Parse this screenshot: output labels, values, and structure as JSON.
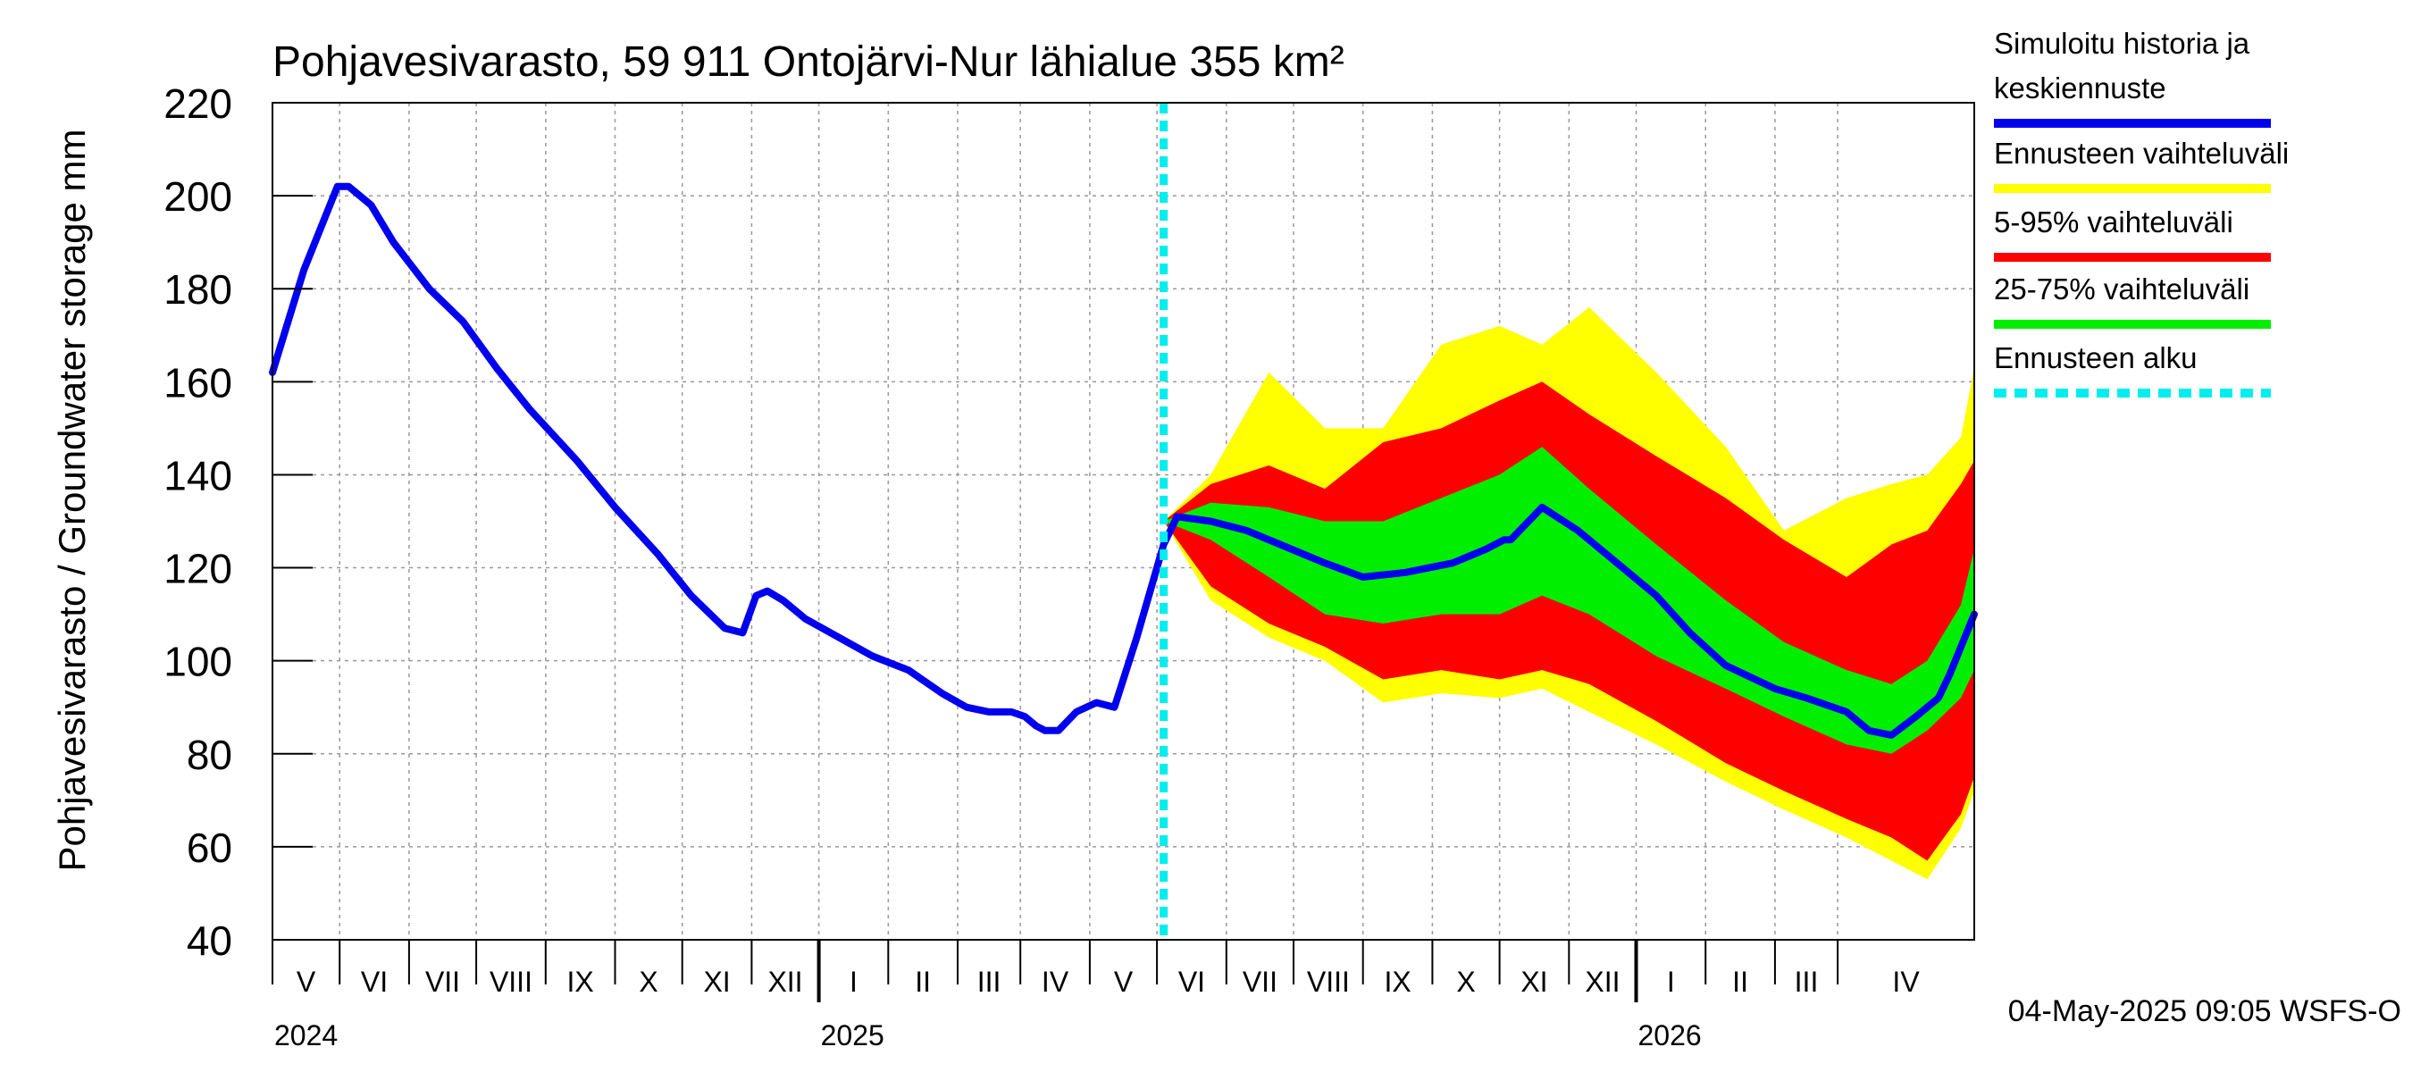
{
  "chart_data": {
    "type": "area",
    "title": "Pohjavesivarasto, 59 911 Ontojärvi-Nur lähialue 355 km²",
    "ylabel": "Pohjavesivarasto / Groundwater storage   mm",
    "ylim": [
      40,
      220
    ],
    "yticks": [
      "40",
      "60",
      "80",
      "100",
      "120",
      "140",
      "160",
      "180",
      "200",
      "220"
    ],
    "xlim": [
      "2024-04-01",
      "2026-05-01"
    ],
    "month_labels": [
      {
        "label": "V",
        "date": "2024-04-01"
      },
      {
        "label": "VI",
        "date": "2024-05-01"
      },
      {
        "label": "VII",
        "date": "2024-06-01"
      },
      {
        "label": "VIII",
        "date": "2024-07-01"
      },
      {
        "label": "IX",
        "date": "2024-08-01"
      },
      {
        "label": "X",
        "date": "2024-09-01"
      },
      {
        "label": "XI",
        "date": "2024-10-01"
      },
      {
        "label": "XII",
        "date": "2024-11-01"
      },
      {
        "label": "I",
        "date": "2024-12-01"
      },
      {
        "label": "II",
        "date": "2025-01-01"
      },
      {
        "label": "III",
        "date": "2025-02-01"
      },
      {
        "label": "IV",
        "date": "2025-03-01"
      },
      {
        "label": "V",
        "date": "2025-04-01"
      },
      {
        "label": "VI",
        "date": "2025-05-01"
      },
      {
        "label": "VII",
        "date": "2025-06-01"
      },
      {
        "label": "VIII",
        "date": "2025-07-01"
      },
      {
        "label": "IX",
        "date": "2025-08-01"
      },
      {
        "label": "X",
        "date": "2025-09-01"
      },
      {
        "label": "XI",
        "date": "2025-10-01"
      },
      {
        "label": "XII",
        "date": "2025-11-01"
      },
      {
        "label": "I",
        "date": "2025-12-01"
      },
      {
        "label": "II",
        "date": "2026-01-01"
      },
      {
        "label": "III",
        "date": "2026-02-01"
      },
      {
        "label": "IV",
        "date": "2026-03-01"
      }
    ],
    "year_labels": [
      {
        "label": "2024",
        "date": "2024-04-01"
      },
      {
        "label": "2025",
        "date": "2024-12-01"
      },
      {
        "label": "2026",
        "date": "2025-12-01"
      }
    ],
    "forecast_start": "2025-05-04",
    "colors": {
      "history": "#0000ee",
      "range_full": "#ffff00",
      "range_5_95": "#ff0000",
      "range_25_75": "#00ee00",
      "forecast_start": "#00eeee",
      "grid": "#999999"
    },
    "series": [
      {
        "name": "Simuloitu historia ja keskiennuste",
        "x": [
          "2024-04-01",
          "2024-04-15",
          "2024-04-30",
          "2024-05-05",
          "2024-05-15",
          "2024-05-25",
          "2024-06-10",
          "2024-06-25",
          "2024-07-10",
          "2024-07-25",
          "2024-08-15",
          "2024-09-01",
          "2024-09-20",
          "2024-10-05",
          "2024-10-20",
          "2024-10-28",
          "2024-11-03",
          "2024-11-08",
          "2024-11-15",
          "2024-11-25",
          "2024-12-10",
          "2024-12-25",
          "2025-01-10",
          "2025-01-25",
          "2025-02-05",
          "2025-02-15",
          "2025-02-25",
          "2025-03-03",
          "2025-03-08",
          "2025-03-12",
          "2025-03-18",
          "2025-03-26",
          "2025-04-04",
          "2025-04-12",
          "2025-04-22",
          "2025-05-04",
          "2025-05-10",
          "2025-05-25",
          "2025-06-10",
          "2025-06-25",
          "2025-07-15",
          "2025-08-01",
          "2025-08-20",
          "2025-09-10",
          "2025-09-25",
          "2025-10-03",
          "2025-10-06",
          "2025-10-20",
          "2025-11-05",
          "2025-11-20",
          "2025-12-10",
          "2025-12-25",
          "2026-01-10",
          "2026-02-01",
          "2026-02-15",
          "2026-03-05",
          "2026-03-15",
          "2026-03-25",
          "2026-04-05",
          "2026-04-15",
          "2026-04-20",
          "2026-05-01"
        ],
        "y": [
          162,
          184,
          202,
          202,
          198,
          190,
          180,
          173,
          163,
          154,
          143,
          133,
          123,
          114,
          107,
          106,
          114,
          115,
          113,
          109,
          105,
          101,
          98,
          93,
          90,
          89,
          89,
          88,
          86,
          85,
          85,
          89,
          91,
          90,
          105,
          125,
          131,
          130,
          128,
          125,
          121,
          118,
          119,
          121,
          124,
          126,
          126,
          133,
          128,
          122,
          114,
          106,
          99,
          94,
          92,
          89,
          85,
          84,
          88,
          92,
          97,
          110
        ]
      },
      {
        "name": "Ennusteen vaihteluväli",
        "x": [
          "2025-05-04",
          "2025-05-25",
          "2025-06-20",
          "2025-07-15",
          "2025-08-10",
          "2025-09-05",
          "2025-10-01",
          "2025-10-20",
          "2025-11-10",
          "2025-12-10",
          "2026-01-10",
          "2026-02-05",
          "2026-03-05",
          "2026-03-25",
          "2026-04-10",
          "2026-04-25",
          "2026-05-01"
        ],
        "upper": [
          130,
          140,
          162,
          150,
          150,
          168,
          172,
          168,
          176,
          162,
          146,
          128,
          135,
          138,
          140,
          148,
          163
        ],
        "lower": [
          130,
          113,
          105,
          100,
          91,
          93,
          92,
          94,
          89,
          82,
          74,
          68,
          62,
          57,
          53,
          64,
          72
        ]
      },
      {
        "name": "5-95% vaihteluväli",
        "x": [
          "2025-05-04",
          "2025-05-25",
          "2025-06-20",
          "2025-07-15",
          "2025-08-10",
          "2025-09-05",
          "2025-10-01",
          "2025-10-20",
          "2025-11-10",
          "2025-12-10",
          "2026-01-10",
          "2026-02-05",
          "2026-03-05",
          "2026-03-25",
          "2026-04-10",
          "2026-04-25",
          "2026-05-01"
        ],
        "upper": [
          130,
          138,
          142,
          137,
          147,
          150,
          156,
          160,
          153,
          144,
          135,
          126,
          118,
          125,
          128,
          138,
          143
        ],
        "lower": [
          130,
          116,
          108,
          103,
          96,
          98,
          96,
          98,
          95,
          87,
          78,
          72,
          66,
          62,
          57,
          67,
          75
        ]
      },
      {
        "name": "25-75% vaihteluväli",
        "x": [
          "2025-05-04",
          "2025-05-25",
          "2025-06-20",
          "2025-07-15",
          "2025-08-10",
          "2025-09-05",
          "2025-10-01",
          "2025-10-20",
          "2025-11-10",
          "2025-12-10",
          "2026-01-10",
          "2026-02-05",
          "2026-03-05",
          "2026-03-25",
          "2026-04-10",
          "2026-04-25",
          "2026-05-01"
        ],
        "upper": [
          130,
          134,
          133,
          130,
          130,
          135,
          140,
          146,
          137,
          125,
          113,
          104,
          98,
          95,
          100,
          112,
          124
        ],
        "lower": [
          130,
          126,
          118,
          110,
          108,
          110,
          110,
          114,
          110,
          101,
          94,
          88,
          82,
          80,
          85,
          92,
          98
        ]
      },
      {
        "name": "Ennusteen alku"
      }
    ],
    "legend": [
      {
        "label": "Simuloitu historia ja keskiennuste",
        "color": "#0000ee",
        "style": "solid"
      },
      {
        "label": "Ennusteen vaihteluväli",
        "color": "#ffff00",
        "style": "solid"
      },
      {
        "label": "5-95% vaihteluväli",
        "color": "#ff0000",
        "style": "solid"
      },
      {
        "label": "25-75% vaihteluväli",
        "color": "#00ee00",
        "style": "solid"
      },
      {
        "label": "Ennusteen alku",
        "color": "#00eeee",
        "style": "dashed"
      }
    ],
    "legend_position": "right",
    "grid": true,
    "footer": "04-May-2025 09:05 WSFS-O"
  }
}
